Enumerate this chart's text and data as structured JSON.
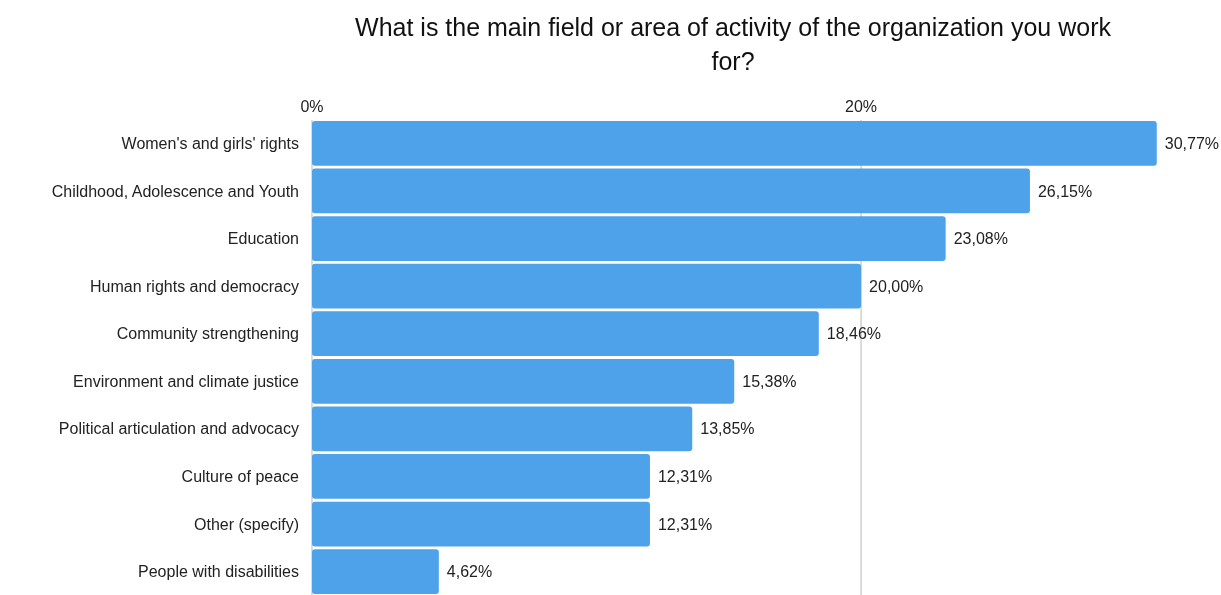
{
  "chart_data": {
    "type": "bar",
    "orientation": "horizontal",
    "title": "What is the main field or area of activity of the organization you work for?",
    "categories": [
      "Women's and girls' rights",
      "Childhood, Adolescence and Youth",
      "Education",
      "Human rights and democracy",
      "Community strengthening",
      "Environment and climate justice",
      "Political articulation and advocacy",
      "Culture of peace",
      "Other (specify)",
      "People with disabilities"
    ],
    "values": [
      30.77,
      26.15,
      23.08,
      20.0,
      18.46,
      15.38,
      13.85,
      12.31,
      12.31,
      4.62
    ],
    "value_labels": [
      "30,77%",
      "26,15%",
      "23,08%",
      "20,00%",
      "18,46%",
      "15,38%",
      "13,85%",
      "12,31%",
      "12,31%",
      "4,62%"
    ],
    "color": "#4ea2ea",
    "xlim": [
      0,
      33
    ],
    "xticks": [
      {
        "value": 0,
        "label": "0%"
      },
      {
        "value": 20,
        "label": "20%"
      }
    ],
    "grid": "x"
  }
}
